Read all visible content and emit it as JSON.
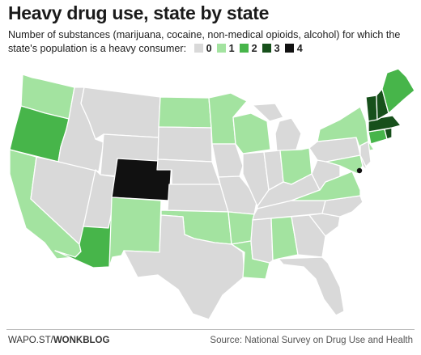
{
  "title": "Heavy drug use, state by state",
  "subtitle": "Number of substances (marijuana, cocaine, non-medical opioids, alcohol) for which the state's population is a heavy consumer:",
  "legend": [
    {
      "label": "0",
      "color": "#d9d9d9"
    },
    {
      "label": "1",
      "color": "#a3e3a0"
    },
    {
      "label": "2",
      "color": "#47b54a"
    },
    {
      "label": "3",
      "color": "#17501b"
    },
    {
      "label": "4",
      "color": "#111111"
    }
  ],
  "states": {
    "WA": 1,
    "OR": 2,
    "CA": 1,
    "NV": 0,
    "ID": 0,
    "MT": 0,
    "WY": 0,
    "UT": 0,
    "CO": 4,
    "AZ": 2,
    "NM": 1,
    "ND": 1,
    "SD": 0,
    "NE": 0,
    "KS": 0,
    "OK": 1,
    "TX": 0,
    "MN": 1,
    "IA": 0,
    "MO": 0,
    "AR": 1,
    "LA": 1,
    "WI": 1,
    "IL": 0,
    "MI": 0,
    "IN": 0,
    "OH": 1,
    "KY": 0,
    "TN": 0,
    "MS": 0,
    "AL": 1,
    "GA": 0,
    "FL": 0,
    "SC": 0,
    "NC": 0,
    "VA": 1,
    "WV": 0,
    "PA": 0,
    "NY": 1,
    "MD": 1,
    "DE": 0,
    "NJ": 0,
    "CT": 2,
    "RI": 3,
    "MA": 3,
    "VT": 3,
    "NH": 3,
    "ME": 2,
    "AK": 0,
    "HI": 0
  },
  "dc_marker": "DC",
  "footer": {
    "left_prefix": "WAPO.ST/",
    "left_brand": "WONKBLOG",
    "right": "Source: National Survey on Drug Use and Health"
  }
}
